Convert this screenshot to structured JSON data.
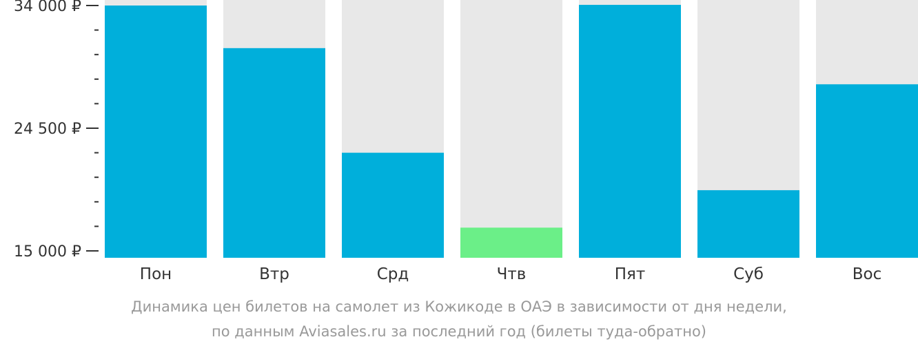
{
  "chart_data": {
    "type": "bar",
    "categories": [
      "Пон",
      "Втр",
      "Срд",
      "Чтв",
      "Пят",
      "Суб",
      "Вос"
    ],
    "values": [
      34000,
      30700,
      22600,
      16800,
      34050,
      19700,
      27900
    ],
    "ylim": [
      15000,
      35400
    ],
    "y_ticks": [
      {
        "value": 15000,
        "label": "15 000 ₽"
      },
      {
        "value": 24500,
        "label": "24 500 ₽"
      },
      {
        "value": 34000,
        "label": "34 000 ₽"
      }
    ],
    "y_minor_step": 1900,
    "highlight_index": 3,
    "colors": {
      "bar": "#00afdb",
      "bar_min": "#6bef88",
      "track": "#e8e8e8",
      "axis_text": "#333333",
      "caption": "#999999"
    },
    "caption": {
      "line1": "Динамика цен билетов на самолет из Кожикоде в ОАЭ в зависимости от дня недели,",
      "line2": "по данным Aviasales.ru за последний год (билеты туда-обратно)"
    }
  }
}
